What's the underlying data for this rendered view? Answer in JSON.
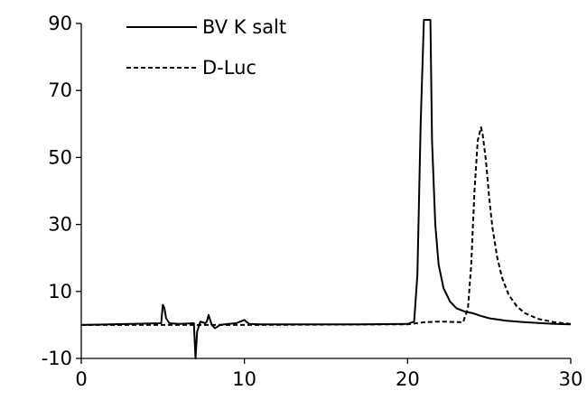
{
  "chart_data": {
    "type": "line",
    "title": "",
    "xlabel": "",
    "ylabel": "",
    "xlim": [
      0,
      30
    ],
    "ylim": [
      -10,
      90
    ],
    "x_ticks": [
      0,
      10,
      20,
      30
    ],
    "y_ticks": [
      -10,
      10,
      30,
      50,
      70,
      90
    ],
    "x_tick_labels": [
      "0",
      "10",
      "20",
      "30"
    ],
    "y_tick_labels": [
      "-10",
      "10",
      "30",
      "50",
      "70",
      "90"
    ],
    "grid": false,
    "legend": {
      "placement": "top-left",
      "entries": [
        "BV K salt",
        "D-Luc"
      ]
    },
    "series": [
      {
        "name": "BV K salt",
        "style": "solid",
        "color": "#000000",
        "x": [
          0,
          4.9,
          5.0,
          5.1,
          5.2,
          5.4,
          6.0,
          6.9,
          7.0,
          7.1,
          7.3,
          7.6,
          7.7,
          7.8,
          7.9,
          8.0,
          8.2,
          8.5,
          9.0,
          9.5,
          10.0,
          10.1,
          10.3,
          11,
          14,
          17,
          20,
          20.4,
          20.6,
          20.8,
          21.0,
          21.1,
          21.2,
          21.3,
          21.4,
          21.5,
          21.7,
          21.9,
          22.2,
          22.6,
          23.0,
          23.5,
          24.0,
          24.5,
          25.0,
          26,
          27,
          28,
          29,
          30
        ],
        "y": [
          0,
          0.5,
          6,
          5,
          2,
          0.5,
          0.3,
          0.5,
          -10,
          -2,
          1,
          0.5,
          1,
          3,
          1.5,
          0,
          -1,
          0,
          0.3,
          0.5,
          1.5,
          1,
          0.3,
          0.2,
          0.2,
          0.2,
          0.3,
          1,
          15,
          60,
          95,
          95,
          95,
          95,
          95,
          55,
          30,
          18,
          11,
          7,
          5,
          4,
          3.5,
          2.7,
          2,
          1.3,
          0.9,
          0.6,
          0.3,
          0.2
        ]
      },
      {
        "name": "D-Luc",
        "style": "dashed",
        "color": "#000000",
        "x": [
          0,
          10,
          20,
          21,
          22,
          23.4,
          23.7,
          23.9,
          24.1,
          24.3,
          24.5,
          24.6,
          24.8,
          25.0,
          25.2,
          25.5,
          25.8,
          26.2,
          26.7,
          27.2,
          28,
          29,
          30
        ],
        "y": [
          0,
          0,
          0.2,
          0.8,
          1,
          0.8,
          5,
          18,
          40,
          55,
          59,
          57,
          49,
          38,
          29,
          20,
          14,
          9,
          5.5,
          3.5,
          1.8,
          0.8,
          0.3
        ]
      }
    ]
  }
}
